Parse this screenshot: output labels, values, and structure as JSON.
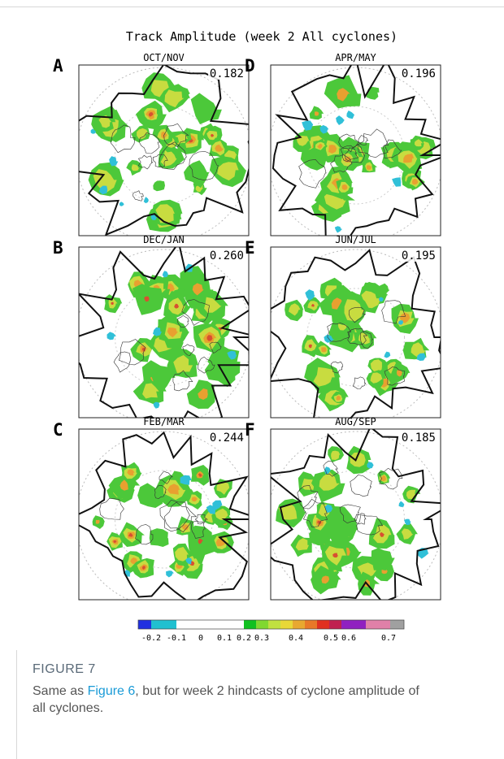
{
  "figure": {
    "title": "Track Amplitude (week 2 All cyclones)",
    "panels": [
      {
        "letter": "A",
        "season": "OCT/NOV",
        "value": "0.182"
      },
      {
        "letter": "B",
        "season": "DEC/JAN",
        "value": "0.260"
      },
      {
        "letter": "C",
        "season": "FEB/MAR",
        "value": "0.244"
      },
      {
        "letter": "D",
        "season": "APR/MAY",
        "value": "0.196"
      },
      {
        "letter": "E",
        "season": "JUN/JUL",
        "value": "0.195"
      },
      {
        "letter": "F",
        "season": "AUG/SEP",
        "value": "0.185"
      }
    ],
    "colorbar": {
      "colors": [
        "#2030e0",
        "#20c0d0",
        "#20c0d0",
        "#ffffff",
        "#ffffff",
        "#10c020",
        "#80d830",
        "#c0e040",
        "#e8d838",
        "#e8a830",
        "#e87828",
        "#e03020",
        "#c02050",
        "#9020c0",
        "#e080a8",
        "#a0a0a0"
      ],
      "labels": [
        "-0.2",
        "-0.1",
        "0",
        "0.1",
        "0.2",
        "0.3",
        "0.4",
        "0.5",
        "0.6",
        "0.7"
      ]
    }
  },
  "caption": {
    "label": "FIGURE 7",
    "text_before": "Same as ",
    "link": "Figure 6",
    "text_after": ", but for week 2 hindcasts of cyclone amplitude of all cyclones."
  }
}
